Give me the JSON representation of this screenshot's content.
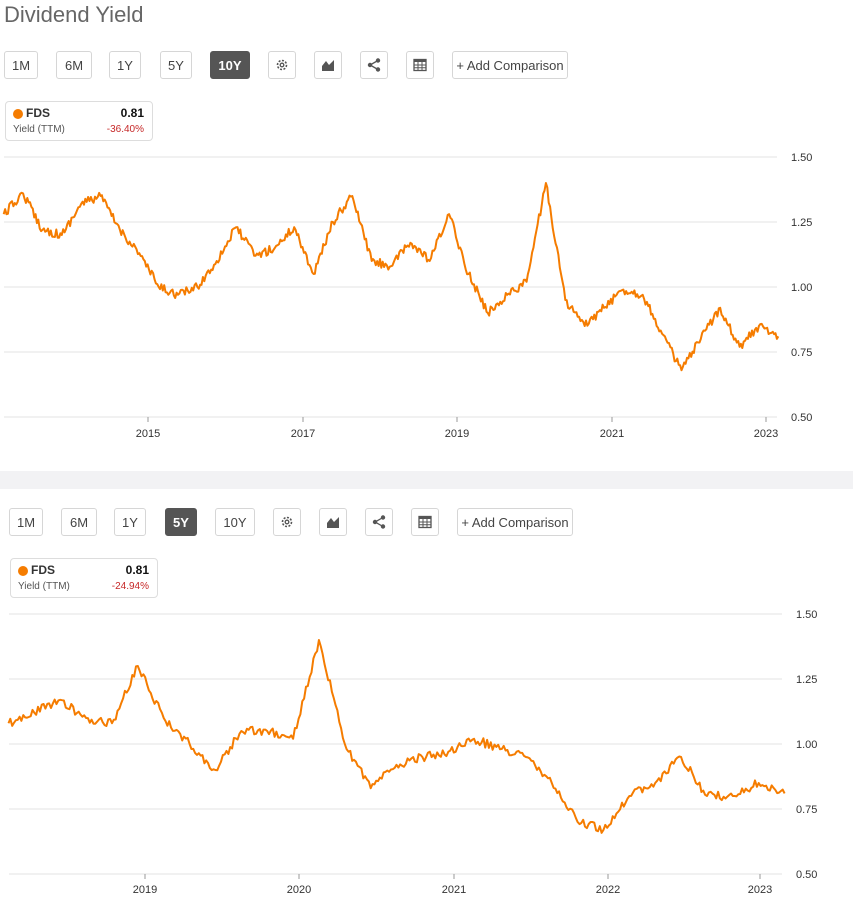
{
  "page_title": "Dividend Yield",
  "panels": [
    {
      "periods": [
        "1M",
        "6M",
        "1Y",
        "5Y",
        "10Y"
      ],
      "active_period": "10Y",
      "add_comparison": "+ Add Comparison",
      "legend": {
        "ticker": "FDS",
        "value": "0.81",
        "metric": "Yield (TTM)",
        "change": "-36.40%"
      }
    },
    {
      "periods": [
        "1M",
        "6M",
        "1Y",
        "5Y",
        "10Y"
      ],
      "active_period": "5Y",
      "add_comparison": "+ Add Comparison",
      "legend": {
        "ticker": "FDS",
        "value": "0.81",
        "metric": "Yield (TTM)",
        "change": "-24.94%"
      }
    }
  ],
  "colors": {
    "line": "#f57c00",
    "active_button": "#555555",
    "negative": "#c62828"
  },
  "icons": [
    "gear-icon",
    "chart-type-icon",
    "share-icon",
    "table-icon"
  ],
  "chart_data": [
    {
      "type": "line",
      "title": "Dividend Yield",
      "series": [
        {
          "name": "FDS",
          "x": [
            "2013-03",
            "2013-06",
            "2013-09",
            "2013-12",
            "2014-03",
            "2014-06",
            "2014-09",
            "2014-12",
            "2015-03",
            "2015-06",
            "2015-09",
            "2015-12",
            "2016-03",
            "2016-06",
            "2016-09",
            "2016-12",
            "2017-03",
            "2017-06",
            "2017-09",
            "2017-12",
            "2018-03",
            "2018-06",
            "2018-09",
            "2018-12",
            "2019-03",
            "2019-06",
            "2019-09",
            "2019-12",
            "2020-03",
            "2020-06",
            "2020-09",
            "2020-12",
            "2021-03",
            "2021-06",
            "2021-09",
            "2021-12",
            "2022-03",
            "2022-06",
            "2022-09",
            "2022-12",
            "2023-03"
          ],
          "values": [
            1.28,
            1.36,
            1.22,
            1.2,
            1.32,
            1.35,
            1.22,
            1.13,
            1.0,
            0.97,
            1.0,
            1.1,
            1.23,
            1.12,
            1.15,
            1.23,
            1.05,
            1.25,
            1.35,
            1.1,
            1.08,
            1.17,
            1.1,
            1.28,
            1.05,
            0.9,
            0.97,
            1.02,
            1.4,
            0.95,
            0.85,
            0.92,
            0.99,
            0.97,
            0.82,
            0.68,
            0.8,
            0.92,
            0.77,
            0.85,
            0.81
          ]
        }
      ],
      "x_ticks": [
        "2015",
        "2017",
        "2019",
        "2021",
        "2023"
      ],
      "y_ticks": [
        "1.50",
        "1.25",
        "1.00",
        "0.75",
        "0.50"
      ],
      "ylim": [
        0.5,
        1.5
      ],
      "grid": "horizontal"
    },
    {
      "type": "line",
      "title": "Dividend Yield",
      "series": [
        {
          "name": "FDS",
          "x": [
            "2018-03",
            "2018-05",
            "2018-07",
            "2018-09",
            "2018-11",
            "2019-01",
            "2019-03",
            "2019-05",
            "2019-07",
            "2019-09",
            "2019-11",
            "2020-01",
            "2020-03",
            "2020-05",
            "2020-07",
            "2020-09",
            "2020-11",
            "2021-01",
            "2021-03",
            "2021-05",
            "2021-07",
            "2021-09",
            "2021-11",
            "2022-01",
            "2022-03",
            "2022-05",
            "2022-07",
            "2022-09",
            "2022-11",
            "2023-01",
            "2023-03"
          ],
          "values": [
            1.08,
            1.12,
            1.17,
            1.1,
            1.08,
            1.3,
            1.1,
            1.0,
            0.9,
            1.05,
            1.05,
            1.02,
            1.4,
            1.0,
            0.83,
            0.92,
            0.95,
            0.97,
            1.02,
            0.98,
            0.95,
            0.85,
            0.7,
            0.67,
            0.8,
            0.85,
            0.95,
            0.8,
            0.8,
            0.85,
            0.81
          ]
        }
      ],
      "x_ticks": [
        "2019",
        "2020",
        "2021",
        "2022",
        "2023"
      ],
      "y_ticks": [
        "1.50",
        "1.25",
        "1.00",
        "0.75",
        "0.50"
      ],
      "ylim": [
        0.5,
        1.5
      ],
      "grid": "horizontal"
    }
  ]
}
